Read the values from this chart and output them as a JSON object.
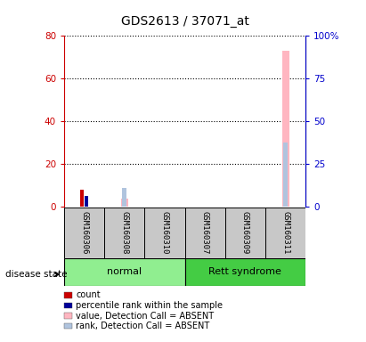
{
  "title": "GDS2613 / 37071_at",
  "samples": [
    "GSM160306",
    "GSM160308",
    "GSM160310",
    "GSM160307",
    "GSM160309",
    "GSM160311"
  ],
  "groups": [
    "normal",
    "normal",
    "normal",
    "Rett syndrome",
    "Rett syndrome",
    "Rett syndrome"
  ],
  "ylim_left": [
    0,
    80
  ],
  "ylim_right": [
    0,
    100
  ],
  "yticks_left": [
    0,
    20,
    40,
    60,
    80
  ],
  "yticks_right": [
    0,
    25,
    50,
    75,
    100
  ],
  "ytick_labels_left": [
    "0",
    "20",
    "40",
    "60",
    "80"
  ],
  "ytick_labels_right": [
    "0",
    "25",
    "50",
    "75",
    "100%"
  ],
  "count_values": [
    8,
    0,
    0,
    0,
    0,
    0
  ],
  "percentile_rank_values": [
    5,
    0,
    0,
    0,
    0,
    0
  ],
  "value_absent_values": [
    0,
    4,
    0,
    0,
    0,
    73
  ],
  "rank_absent_values": [
    0,
    9,
    0,
    0,
    0,
    30
  ],
  "count_color": "#CC0000",
  "percentile_color": "#000099",
  "value_absent_color": "#FFB6C1",
  "rank_absent_color": "#B0C4DE",
  "normal_color": "#90EE90",
  "rett_color": "#44CC44",
  "gray_color": "#C8C8C8",
  "left_axis_color": "#CC0000",
  "right_axis_color": "#0000CC",
  "legend_items": [
    {
      "color": "#CC0000",
      "label": "count"
    },
    {
      "color": "#000099",
      "label": "percentile rank within the sample"
    },
    {
      "color": "#FFB6C1",
      "label": "value, Detection Call = ABSENT"
    },
    {
      "color": "#B0C4DE",
      "label": "rank, Detection Call = ABSENT"
    }
  ],
  "disease_state_label": "disease state"
}
